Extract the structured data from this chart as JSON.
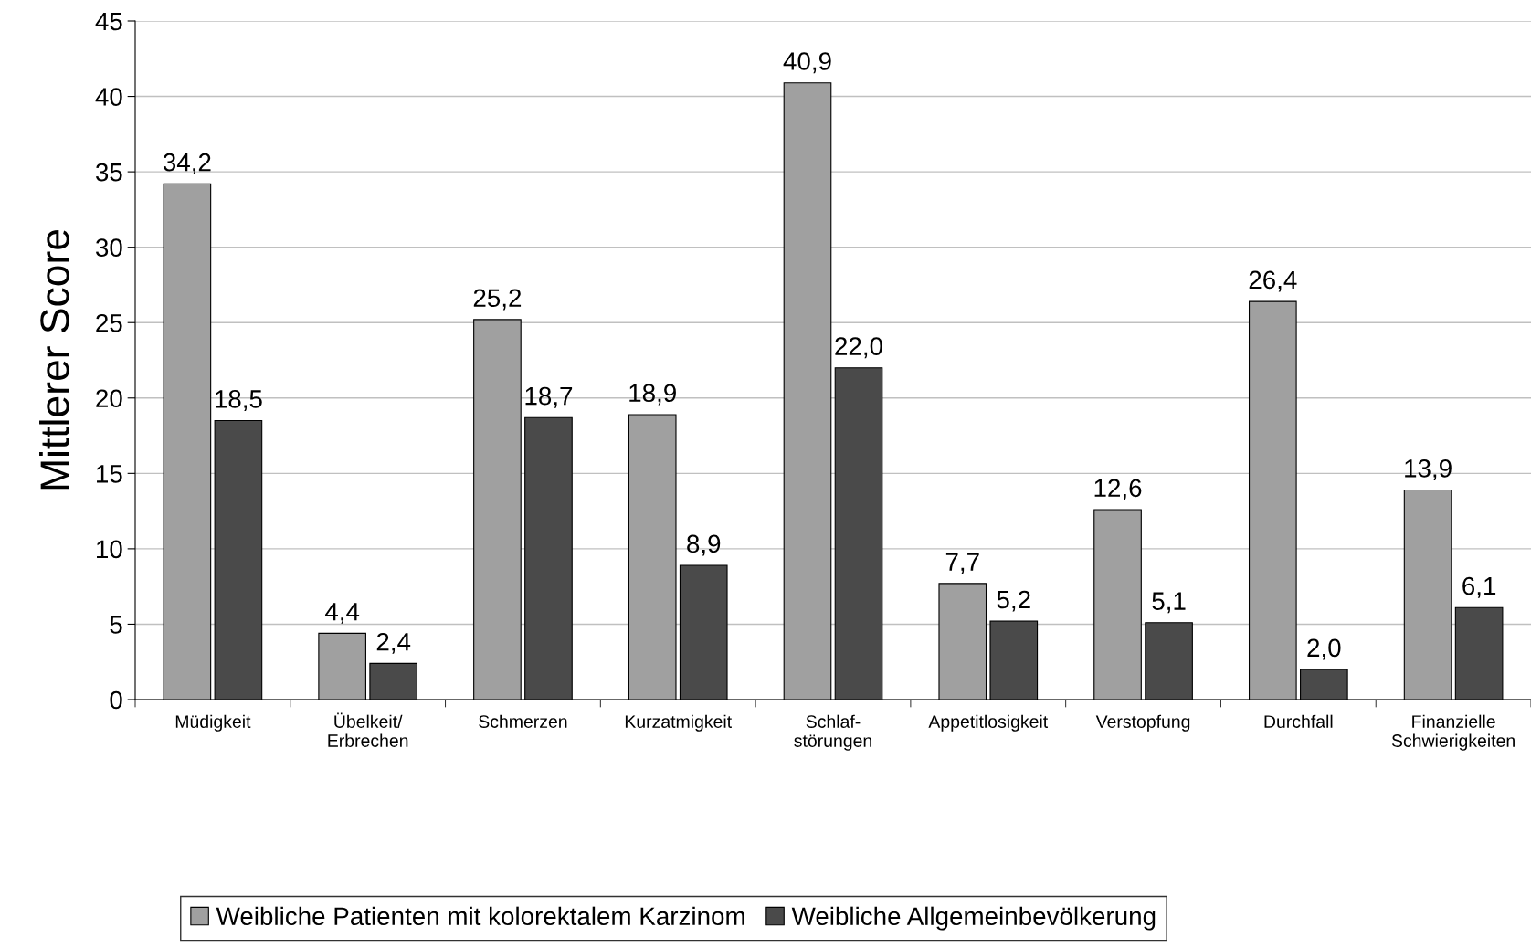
{
  "chart_data": {
    "type": "bar",
    "ylabel": "Mittlerer Score",
    "categories": [
      "Müdigkeit",
      "Übelkeit/\nErbrechen",
      "Schmerzen",
      "Kurzatmigkeit",
      "Schlaf-\nstörungen",
      "Appetitlosigkeit",
      "Verstopfung",
      "Durchfall",
      "Finanzielle\nSchwierigkeiten"
    ],
    "series": [
      {
        "name": "Weibliche Patienten mit kolorektalem Karzinom",
        "color": "#a0a0a0",
        "values": [
          34.2,
          4.4,
          25.2,
          18.9,
          40.9,
          7.7,
          12.6,
          26.4,
          13.9
        ],
        "value_labels": [
          "34,2",
          "4,4",
          "25,2",
          "18,9",
          "40,9",
          "7,7",
          "12,6",
          "26,4",
          "13,9"
        ]
      },
      {
        "name": "Weibliche Allgemeinbevölkerung",
        "color": "#4a4a4a",
        "values": [
          18.5,
          2.4,
          18.7,
          8.9,
          22.0,
          5.2,
          5.1,
          2.0,
          6.1
        ],
        "value_labels": [
          "18,5",
          "2,4",
          "18,7",
          "8,9",
          "22,0",
          "5,2",
          "5,1",
          "2,0",
          "6,1"
        ]
      }
    ],
    "ylim": [
      0,
      45
    ],
    "yticks": [
      0,
      5,
      10,
      15,
      20,
      25,
      30,
      35,
      40,
      45
    ],
    "grid": "y",
    "legend": "bottom"
  }
}
